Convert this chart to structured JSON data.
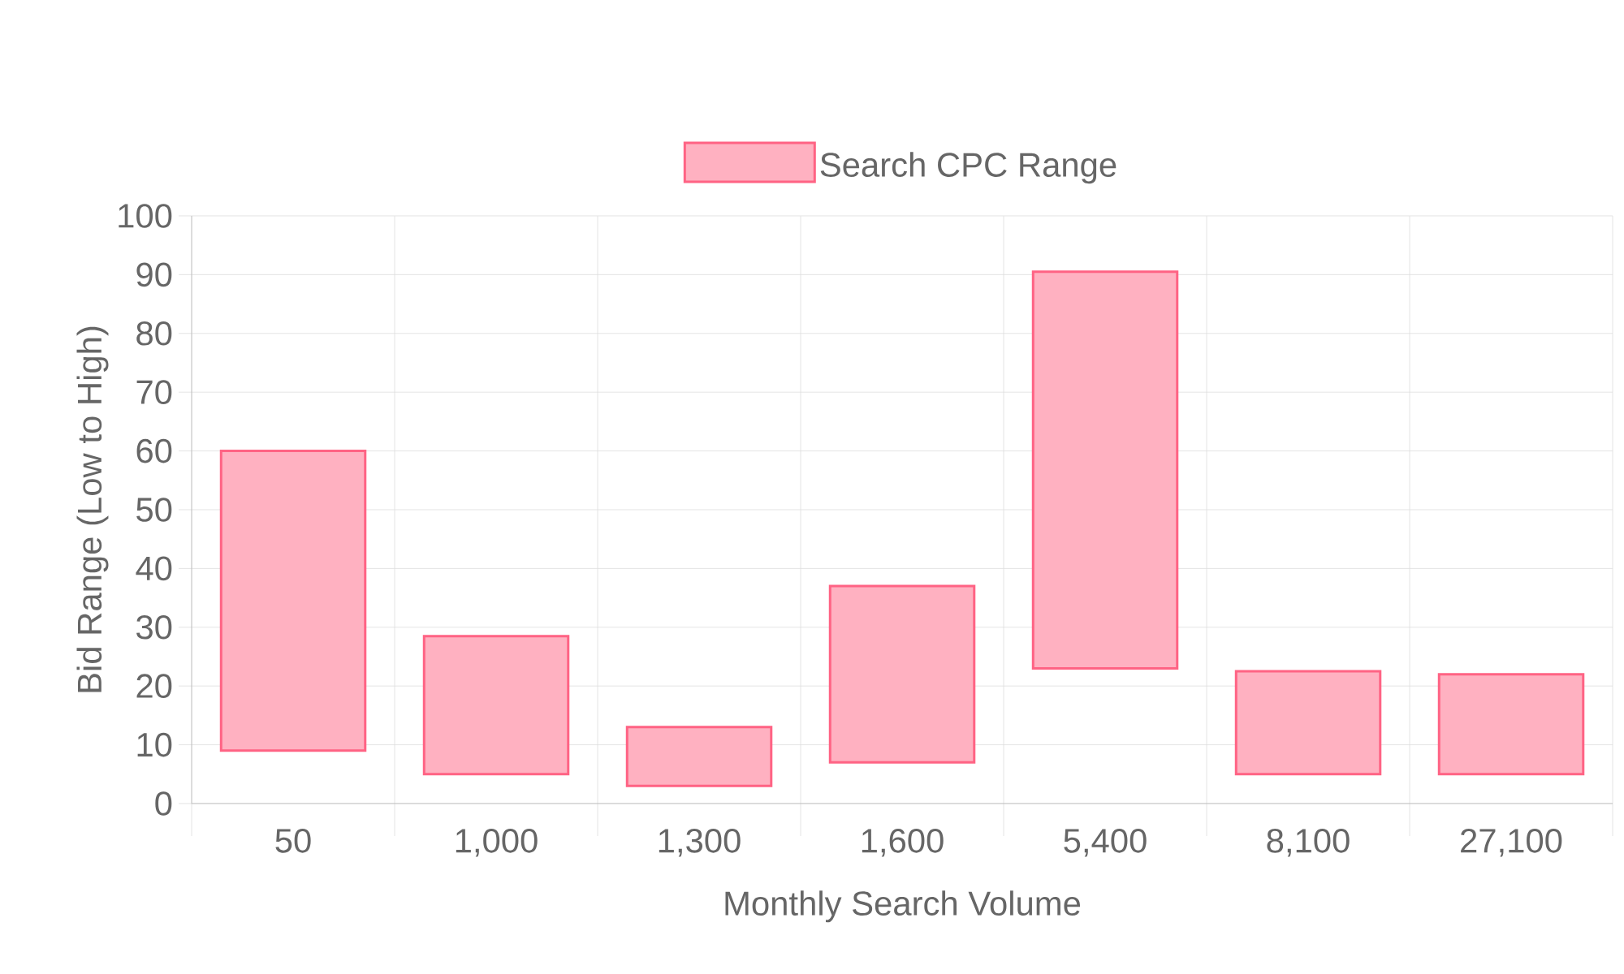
{
  "chart_data": {
    "type": "bar",
    "xlabel": "Monthly Search Volume",
    "ylabel": "Bid Range (Low to High)",
    "categories": [
      "50",
      "1,000",
      "1,300",
      "1,600",
      "5,400",
      "8,100",
      "27,100"
    ],
    "series": [
      {
        "name": "Search CPC Range",
        "color": "#ff6384",
        "base": [
          9,
          5,
          3,
          7,
          23,
          5,
          5
        ],
        "values": [
          51,
          23.5,
          10,
          30,
          67.5,
          17.5,
          17
        ]
      }
    ],
    "ylim": [
      0,
      100
    ],
    "yticks": [
      0,
      10,
      20,
      30,
      40,
      50,
      60,
      70,
      80,
      90,
      100
    ],
    "grid": true,
    "legend": "top"
  }
}
